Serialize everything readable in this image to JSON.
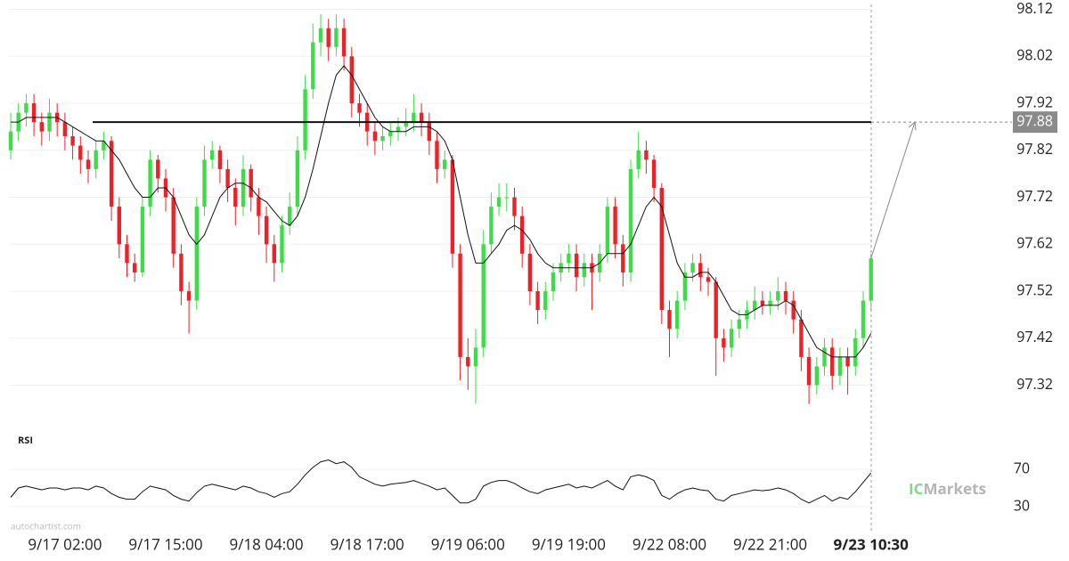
{
  "chart_data": {
    "type": "candlestick",
    "categories": [
      null,
      null,
      null,
      null,
      null,
      null,
      null,
      "9/17 02:00",
      null,
      null,
      null,
      null,
      null,
      null,
      null,
      null,
      null,
      null,
      null,
      null,
      "9/17 15:00",
      null,
      null,
      null,
      null,
      null,
      null,
      null,
      null,
      null,
      null,
      null,
      null,
      "9/18 04:00",
      null,
      null,
      null,
      null,
      null,
      null,
      null,
      null,
      null,
      null,
      null,
      null,
      "9/18 17:00",
      null,
      null,
      null,
      null,
      null,
      null,
      null,
      null,
      null,
      null,
      null,
      null,
      "9/19 06:00",
      null,
      null,
      null,
      null,
      null,
      null,
      null,
      null,
      null,
      null,
      null,
      null,
      "9/19 19:00",
      null,
      null,
      null,
      null,
      null,
      null,
      null,
      null,
      null,
      null,
      null,
      null,
      "9/22 08:00",
      null,
      null,
      null,
      null,
      null,
      null,
      null,
      null,
      null,
      null,
      null,
      null,
      "9/22 21:00",
      null,
      null,
      null,
      null,
      null,
      null,
      null,
      null,
      null,
      null,
      null,
      null,
      "9/23 10:30"
    ],
    "open": [
      97.82,
      97.86,
      97.9,
      97.92,
      97.88,
      97.86,
      97.9,
      97.88,
      97.85,
      97.83,
      97.8,
      97.78,
      97.82,
      97.84,
      97.7,
      97.62,
      97.58,
      97.56,
      97.7,
      97.8,
      97.76,
      97.72,
      97.6,
      97.52,
      97.5,
      97.7,
      97.8,
      97.82,
      97.78,
      97.74,
      97.7,
      97.78,
      97.72,
      97.68,
      97.62,
      97.58,
      97.66,
      97.7,
      97.82,
      97.95,
      98.05,
      98.08,
      98.04,
      98.08,
      98.02,
      97.92,
      97.9,
      97.86,
      97.84,
      97.85,
      97.86,
      97.87,
      97.88,
      97.9,
      97.88,
      97.84,
      97.78,
      97.8,
      97.6,
      97.38,
      97.36,
      97.4,
      97.62,
      97.7,
      97.72,
      97.72,
      97.68,
      97.6,
      97.52,
      97.48,
      97.52,
      97.56,
      97.58,
      97.6,
      97.55,
      97.58,
      97.56,
      97.6,
      97.7,
      97.62,
      97.56,
      97.78,
      97.82,
      97.8,
      97.74,
      97.48,
      97.44,
      97.5,
      97.56,
      97.58,
      97.55,
      97.54,
      97.42,
      97.4,
      97.44,
      97.46,
      97.48,
      97.5,
      97.49,
      97.5,
      97.52,
      97.5,
      97.46,
      97.38,
      97.32,
      97.36,
      97.4,
      97.34,
      97.38,
      97.36,
      97.42,
      97.5
    ],
    "high": [
      97.9,
      97.92,
      97.94,
      97.94,
      97.9,
      97.93,
      97.92,
      97.9,
      97.87,
      97.85,
      97.82,
      97.84,
      97.86,
      97.85,
      97.72,
      97.64,
      97.6,
      97.72,
      97.82,
      97.81,
      97.78,
      97.74,
      97.62,
      97.54,
      97.72,
      97.83,
      97.84,
      97.83,
      97.8,
      97.76,
      97.81,
      97.79,
      97.74,
      97.7,
      97.64,
      97.68,
      97.73,
      97.85,
      97.98,
      98.09,
      98.11,
      98.1,
      98.11,
      98.1,
      98.04,
      97.94,
      97.92,
      97.88,
      97.87,
      97.88,
      97.89,
      97.91,
      97.94,
      97.92,
      97.9,
      97.86,
      97.82,
      97.81,
      97.62,
      97.42,
      97.44,
      97.65,
      97.73,
      97.75,
      97.75,
      97.74,
      97.7,
      97.62,
      97.54,
      97.54,
      97.58,
      97.6,
      97.62,
      97.62,
      97.6,
      97.6,
      97.62,
      97.72,
      97.72,
      97.64,
      97.8,
      97.86,
      97.84,
      97.81,
      97.75,
      97.5,
      97.52,
      97.58,
      97.6,
      97.6,
      97.57,
      97.55,
      97.44,
      97.46,
      97.48,
      97.5,
      97.53,
      97.52,
      97.52,
      97.55,
      97.54,
      97.52,
      97.48,
      97.4,
      97.38,
      97.42,
      97.42,
      97.4,
      97.4,
      97.44,
      97.52,
      97.6
    ],
    "low": [
      97.8,
      97.84,
      97.87,
      97.85,
      97.83,
      97.84,
      97.85,
      97.82,
      97.8,
      97.77,
      97.75,
      97.76,
      97.8,
      97.67,
      97.59,
      97.55,
      97.54,
      97.55,
      97.68,
      97.73,
      97.69,
      97.57,
      97.49,
      97.43,
      97.48,
      97.68,
      97.78,
      97.75,
      97.71,
      97.66,
      97.68,
      97.69,
      97.64,
      97.58,
      97.54,
      97.56,
      97.64,
      97.68,
      97.8,
      97.93,
      98.02,
      98.01,
      98.02,
      97.99,
      97.89,
      97.87,
      97.83,
      97.81,
      97.82,
      97.83,
      97.84,
      97.85,
      97.86,
      97.85,
      97.81,
      97.75,
      97.76,
      97.57,
      97.33,
      97.31,
      97.28,
      97.38,
      97.6,
      97.68,
      97.69,
      97.65,
      97.57,
      97.49,
      97.45,
      97.46,
      97.5,
      97.54,
      97.56,
      97.52,
      97.53,
      97.48,
      97.54,
      97.58,
      97.59,
      97.53,
      97.54,
      97.76,
      97.77,
      97.71,
      97.45,
      97.38,
      97.42,
      97.48,
      97.54,
      97.52,
      97.51,
      97.34,
      97.37,
      97.38,
      97.42,
      97.44,
      97.46,
      97.47,
      97.47,
      97.48,
      97.47,
      97.43,
      97.35,
      97.28,
      97.3,
      97.34,
      97.31,
      97.32,
      97.3,
      97.34,
      97.4,
      97.48
    ],
    "close": [
      97.86,
      97.9,
      97.92,
      97.88,
      97.86,
      97.9,
      97.88,
      97.85,
      97.83,
      97.8,
      97.78,
      97.82,
      97.84,
      97.7,
      97.62,
      97.58,
      97.56,
      97.7,
      97.8,
      97.76,
      97.72,
      97.6,
      97.52,
      97.5,
      97.7,
      97.8,
      97.82,
      97.78,
      97.74,
      97.7,
      97.78,
      97.72,
      97.68,
      97.62,
      97.58,
      97.66,
      97.7,
      97.82,
      97.95,
      98.05,
      98.08,
      98.04,
      98.08,
      98.02,
      97.92,
      97.9,
      97.86,
      97.84,
      97.85,
      97.86,
      97.87,
      97.88,
      97.9,
      97.88,
      97.84,
      97.78,
      97.8,
      97.6,
      97.38,
      97.36,
      97.4,
      97.62,
      97.7,
      97.72,
      97.72,
      97.68,
      97.6,
      97.52,
      97.48,
      97.52,
      97.56,
      97.58,
      97.6,
      97.55,
      97.58,
      97.56,
      97.6,
      97.7,
      97.62,
      97.56,
      97.78,
      97.82,
      97.8,
      97.74,
      97.48,
      97.44,
      97.5,
      97.56,
      97.58,
      97.55,
      97.54,
      97.42,
      97.4,
      97.44,
      97.46,
      97.48,
      97.5,
      97.49,
      97.5,
      97.52,
      97.5,
      97.46,
      97.38,
      97.32,
      97.36,
      97.4,
      97.34,
      97.38,
      97.36,
      97.42,
      97.5,
      97.59
    ],
    "up_color": "#3fdc4a",
    "down_color": "#ec2228",
    "moving_average": {
      "color": "#111111",
      "values": [
        97.88,
        97.88,
        97.89,
        97.89,
        97.89,
        97.89,
        97.89,
        97.88,
        97.87,
        97.86,
        97.85,
        97.84,
        97.84,
        97.82,
        97.8,
        97.77,
        97.74,
        97.72,
        97.72,
        97.74,
        97.74,
        97.72,
        97.68,
        97.64,
        97.62,
        97.64,
        97.68,
        97.72,
        97.74,
        97.75,
        97.75,
        97.74,
        97.72,
        97.71,
        97.69,
        97.67,
        97.66,
        97.68,
        97.72,
        97.78,
        97.85,
        97.92,
        97.98,
        98.0,
        97.98,
        97.95,
        97.92,
        97.89,
        97.87,
        97.86,
        97.86,
        97.86,
        97.87,
        97.87,
        97.87,
        97.86,
        97.84,
        97.8,
        97.72,
        97.64,
        97.58,
        97.58,
        97.6,
        97.62,
        97.65,
        97.66,
        97.65,
        97.63,
        97.6,
        97.58,
        97.57,
        97.57,
        97.57,
        97.57,
        97.57,
        97.57,
        97.58,
        97.6,
        97.6,
        97.6,
        97.62,
        97.66,
        97.7,
        97.72,
        97.7,
        97.64,
        97.58,
        97.55,
        97.55,
        97.56,
        97.56,
        97.54,
        97.51,
        97.48,
        97.47,
        97.47,
        97.48,
        97.49,
        97.49,
        97.49,
        97.5,
        97.49,
        97.46,
        97.43,
        97.4,
        97.39,
        97.38,
        97.38,
        97.38,
        97.38,
        97.4,
        97.43
      ]
    },
    "level": {
      "value": 97.88,
      "color": "#111111"
    },
    "ylim": [
      97.23,
      98.14
    ],
    "yticks": [
      98.12,
      98.02,
      97.92,
      97.82,
      97.72,
      97.62,
      97.52,
      97.42,
      97.32
    ],
    "grid": true,
    "rsi": {
      "label": "RSI",
      "color": "#111111",
      "ylim": [
        10,
        90
      ],
      "yticks": [
        70,
        30
      ],
      "values": [
        40,
        50,
        52,
        50,
        48,
        50,
        50,
        48,
        50,
        50,
        48,
        52,
        50,
        44,
        40,
        38,
        38,
        46,
        52,
        50,
        48,
        42,
        38,
        36,
        45,
        52,
        54,
        52,
        50,
        48,
        52,
        50,
        46,
        44,
        40,
        44,
        46,
        54,
        64,
        72,
        78,
        80,
        76,
        78,
        72,
        62,
        58,
        54,
        52,
        54,
        55,
        56,
        58,
        55,
        52,
        48,
        50,
        42,
        34,
        34,
        38,
        52,
        56,
        58,
        58,
        55,
        50,
        46,
        44,
        48,
        50,
        52,
        54,
        50,
        52,
        50,
        54,
        58,
        52,
        48,
        62,
        64,
        62,
        58,
        42,
        38,
        44,
        48,
        50,
        48,
        47,
        38,
        36,
        42,
        44,
        46,
        48,
        47,
        48,
        50,
        48,
        44,
        38,
        34,
        38,
        42,
        36,
        40,
        38,
        46,
        56,
        66
      ]
    },
    "watermark": "autochartist.com",
    "logo": {
      "prefix": "IC",
      "name": "Markets"
    }
  }
}
